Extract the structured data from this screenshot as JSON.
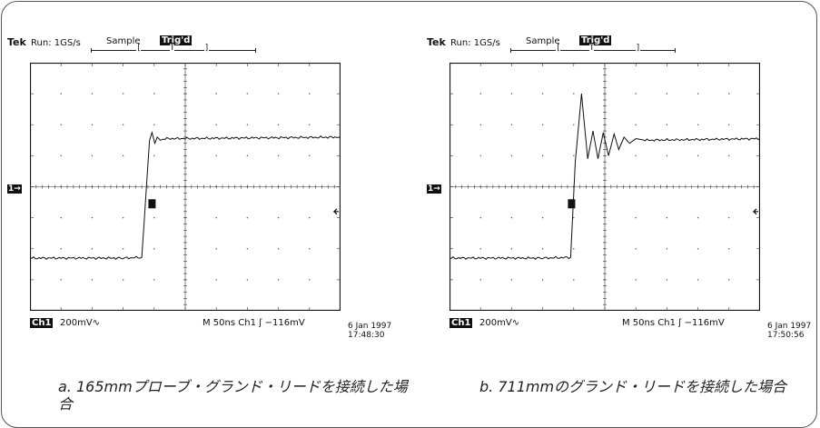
{
  "panels": [
    {
      "header": {
        "brand": "Tek",
        "run": "Run: 1GS/s",
        "mode": "Sample",
        "trig": "Trig'd"
      },
      "trigger_marker": "T",
      "ground_marker": "1→",
      "footer": {
        "channel": "Ch1",
        "volts": "200mV∿",
        "timebase": "M  50ns  Ch1  ʃ  −116mV",
        "date": "6 Jan 1997",
        "time": "17:48:30"
      },
      "caption": "a. 165mmプローブ・グランド・リードを接続した場合"
    },
    {
      "header": {
        "brand": "Tek",
        "run": "Run: 1GS/s",
        "mode": "Sample",
        "trig": "Trig'd"
      },
      "trigger_marker": "T",
      "ground_marker": "1→",
      "footer": {
        "channel": "Ch1",
        "volts": "200mV∿",
        "timebase": "M  50ns  Ch1  ʃ  −116mV",
        "date": "6 Jan 1997",
        "time": "17:50:56"
      },
      "caption": "b. 711mmのグランド・リードを接続した場合"
    }
  ],
  "chart_data": [
    {
      "type": "line",
      "x_divisions": 10,
      "y_divisions": 8,
      "volts_per_div": "200mV",
      "time_per_div": "50ns",
      "trigger_level": "-116mV",
      "ringing": false,
      "series": [
        {
          "x": [
            0,
            3.0,
            3.6,
            3.85,
            3.93,
            4.02,
            4.1,
            4.2,
            4.35,
            10
          ],
          "y": [
            -2.3,
            -2.3,
            -2.28,
            1.5,
            1.75,
            1.4,
            1.6,
            1.5,
            1.55,
            1.6
          ]
        }
      ]
    },
    {
      "type": "line",
      "x_divisions": 10,
      "y_divisions": 8,
      "volts_per_div": "200mV",
      "time_per_div": "50ns",
      "trigger_level": "-116mV",
      "ringing": true,
      "series": [
        {
          "x": [
            0,
            3.0,
            3.9,
            4.05,
            4.25,
            4.45,
            4.62,
            4.78,
            4.95,
            5.12,
            5.3,
            5.45,
            5.62,
            5.8,
            6.0,
            6.3,
            10
          ],
          "y": [
            -2.3,
            -2.3,
            -2.28,
            0.8,
            3.0,
            0.9,
            1.8,
            0.9,
            1.75,
            1.0,
            1.7,
            1.2,
            1.6,
            1.4,
            1.55,
            1.5,
            1.55
          ]
        }
      ]
    }
  ]
}
